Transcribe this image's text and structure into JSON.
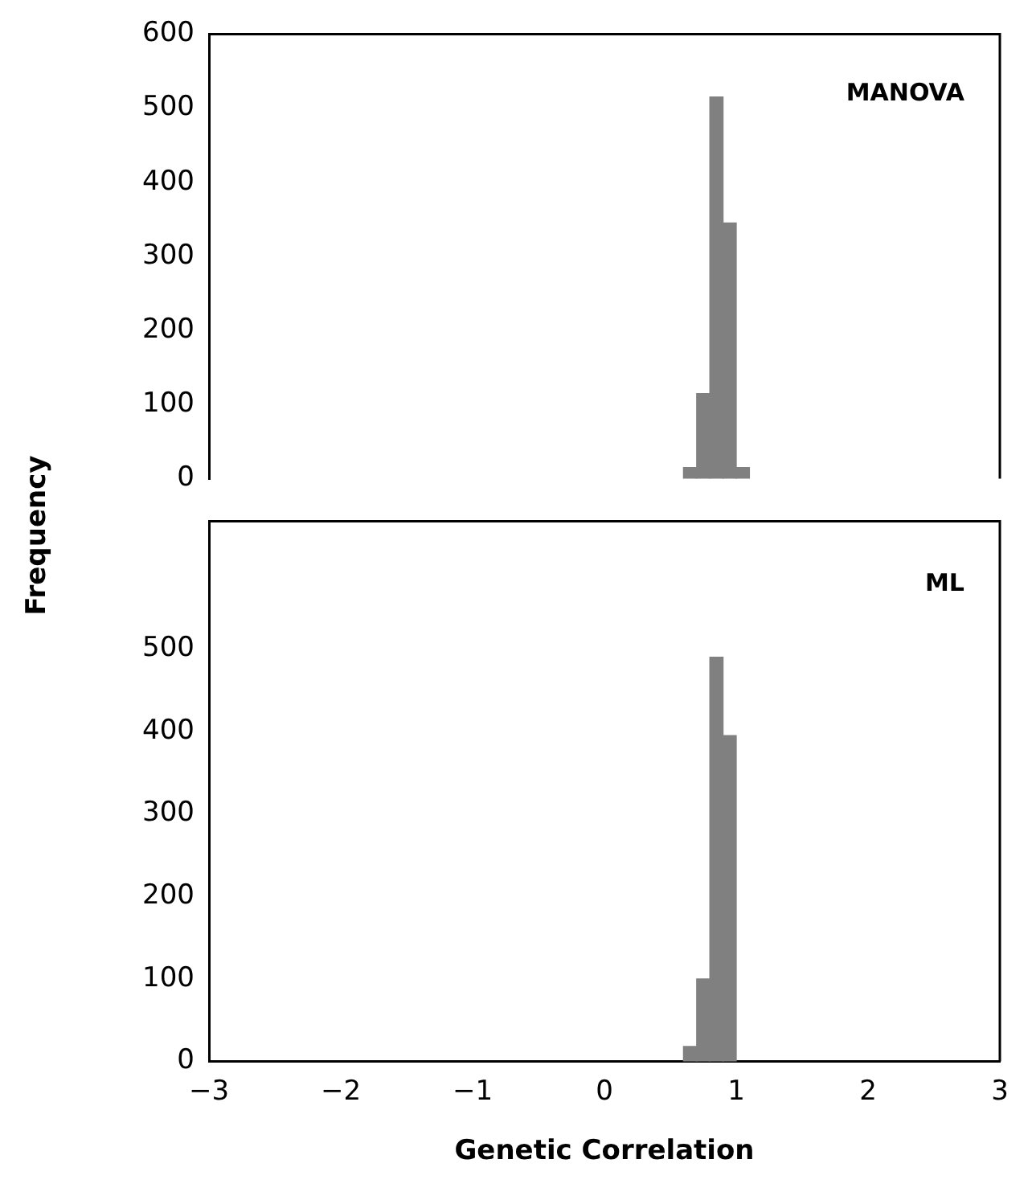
{
  "chart_data": [
    {
      "type": "histogram",
      "ylabel": "Frequency",
      "bins": [
        0.6,
        0.7,
        0.8,
        0.9,
        1.0,
        1.1
      ],
      "values": [
        15,
        115,
        515,
        345,
        15
      ],
      "color": "#808080",
      "xlim": [
        -3,
        3
      ],
      "ylim": [
        0,
        600
      ],
      "yticks": [
        0,
        100,
        200,
        300,
        400,
        500,
        600
      ],
      "tick_labels": "y",
      "grid": false,
      "legend": false,
      "annotations": [
        "MANOVA"
      ]
    },
    {
      "type": "histogram",
      "xlabel": "Genetic Correlation",
      "bins": [
        0.6,
        0.7,
        0.8,
        0.9,
        1.0
      ],
      "values": [
        18,
        100,
        490,
        395
      ],
      "color": "#808080",
      "xlim": [
        -3,
        3
      ],
      "xticks": [
        -3,
        -2,
        -1,
        0,
        1,
        2,
        3
      ],
      "ylim": [
        0,
        655
      ],
      "yticks": [
        0,
        100,
        200,
        300,
        400,
        500
      ],
      "grid": false,
      "legend": false,
      "annotations": [
        "ML"
      ]
    }
  ]
}
